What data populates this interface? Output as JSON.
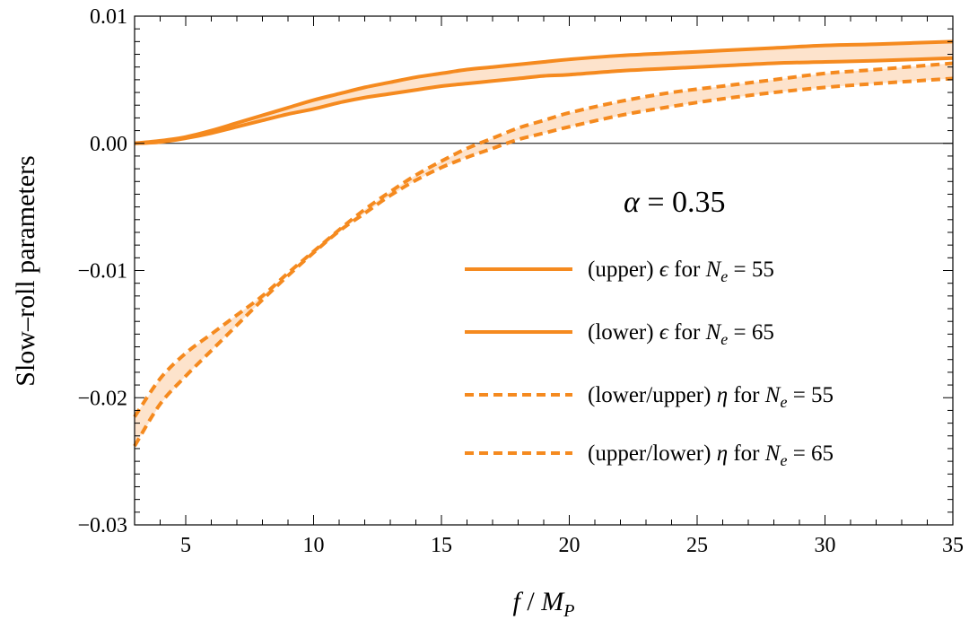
{
  "chart_data": {
    "type": "line",
    "xlabel": {
      "main": "f",
      "sep": " / ",
      "sym": "M",
      "sub": "P"
    },
    "ylabel": "Slow–roll  parameters",
    "xlim": [
      3,
      35
    ],
    "ylim": [
      -0.03,
      0.01
    ],
    "xticks": [
      5,
      10,
      15,
      20,
      25,
      30,
      35
    ],
    "xtick_labels": [
      "5",
      "10",
      "15",
      "20",
      "25",
      "30",
      "35"
    ],
    "yticks": [
      0.01,
      0.0,
      -0.01,
      -0.02,
      -0.03
    ],
    "ytick_labels": [
      "0.01",
      "0.00",
      "−0.01",
      "−0.02",
      "−0.03"
    ],
    "grid": false,
    "legend_position": "right",
    "annotation": {
      "symbol": "α",
      "rest": " = 0.35"
    },
    "colors": {
      "line": "#f58a1f",
      "fill": "#fde3cc",
      "zero_line": "#000000",
      "frame": "#000000"
    },
    "series": [
      {
        "name": "epsilon-Ne55",
        "style": "solid",
        "x": [
          3,
          4,
          5,
          6,
          7,
          8,
          9,
          10,
          11,
          12,
          13,
          14,
          15,
          16,
          17,
          18,
          19,
          20,
          22,
          24,
          26,
          28,
          30,
          32,
          35
        ],
        "y": [
          0.0,
          0.0002,
          0.0005,
          0.001,
          0.0016,
          0.0022,
          0.0028,
          0.0034,
          0.0039,
          0.0044,
          0.0048,
          0.0052,
          0.0055,
          0.0058,
          0.006,
          0.0062,
          0.0064,
          0.0066,
          0.0069,
          0.0071,
          0.0073,
          0.0075,
          0.0077,
          0.0078,
          0.008
        ]
      },
      {
        "name": "epsilon-Ne65",
        "style": "solid",
        "x": [
          3,
          4,
          5,
          6,
          7,
          8,
          9,
          10,
          11,
          12,
          13,
          14,
          15,
          16,
          17,
          18,
          19,
          20,
          22,
          24,
          26,
          28,
          30,
          32,
          35
        ],
        "y": [
          0.0,
          0.0001,
          0.0004,
          0.0008,
          0.0013,
          0.0018,
          0.0023,
          0.0027,
          0.0032,
          0.0036,
          0.0039,
          0.0042,
          0.0045,
          0.0047,
          0.0049,
          0.0051,
          0.0053,
          0.0054,
          0.0057,
          0.0059,
          0.0061,
          0.0063,
          0.0064,
          0.0065,
          0.0067
        ]
      },
      {
        "name": "eta-Ne55",
        "style": "dashed",
        "x": [
          3,
          4,
          5,
          6,
          7,
          8,
          9,
          10,
          11,
          12,
          13,
          14,
          15,
          16,
          17,
          18,
          19,
          20,
          22,
          24,
          26,
          28,
          30,
          32,
          35
        ],
        "y": [
          -0.0215,
          -0.0185,
          -0.0165,
          -0.015,
          -0.0135,
          -0.012,
          -0.0102,
          -0.0085,
          -0.0068,
          -0.0052,
          -0.0038,
          -0.0025,
          -0.0014,
          -0.0004,
          0.0004,
          0.0012,
          0.0018,
          0.0024,
          0.0033,
          0.004,
          0.0045,
          0.005,
          0.0055,
          0.0058,
          0.0063
        ]
      },
      {
        "name": "eta-Ne65",
        "style": "dashed",
        "x": [
          3,
          4,
          5,
          6,
          7,
          8,
          9,
          10,
          11,
          12,
          13,
          14,
          15,
          16,
          17,
          18,
          19,
          20,
          22,
          24,
          26,
          28,
          30,
          32,
          35
        ],
        "y": [
          -0.0238,
          -0.0205,
          -0.0183,
          -0.0163,
          -0.0143,
          -0.0123,
          -0.0104,
          -0.0086,
          -0.0069,
          -0.0055,
          -0.0041,
          -0.0029,
          -0.0019,
          -0.0011,
          -0.0004,
          0.0003,
          0.0008,
          0.0013,
          0.0022,
          0.0029,
          0.0035,
          0.004,
          0.0044,
          0.0047,
          0.0051
        ]
      }
    ],
    "legend": [
      {
        "style": "solid",
        "prefix": "(upper) ",
        "symbol": "ϵ",
        "mid": " for ",
        "n": "N",
        "sub": "e",
        "value": " = 55"
      },
      {
        "style": "solid",
        "prefix": "(lower) ",
        "symbol": "ϵ",
        "mid": " for ",
        "n": "N",
        "sub": "e",
        "value": " = 65"
      },
      {
        "style": "dashed",
        "prefix": "(lower/upper) ",
        "symbol": "η",
        "mid": " for ",
        "n": "N",
        "sub": "e",
        "value": " = 55"
      },
      {
        "style": "dashed",
        "prefix": "(upper/lower) ",
        "symbol": "η",
        "mid": " for ",
        "n": "N",
        "sub": "e",
        "value": " = 65"
      }
    ]
  }
}
